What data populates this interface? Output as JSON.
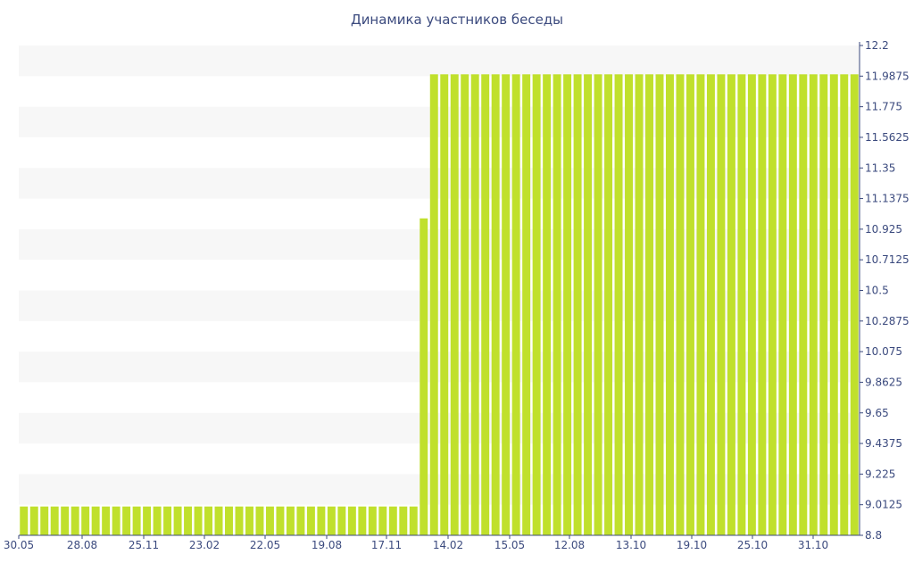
{
  "chart_data": {
    "type": "bar",
    "title": "Динамика участников беседы",
    "xlabel": "",
    "ylabel": "",
    "ylim": [
      8.8,
      12.2
    ],
    "y_axis_position": "right",
    "y_ticks": [
      "12.2",
      "11.9875",
      "11.775",
      "11.5625",
      "11.35",
      "11.1375",
      "10.925",
      "10.7125",
      "10.5",
      "10.2875",
      "10.075",
      "9.8625",
      "9.65",
      "9.4375",
      "9.225",
      "9.0125",
      "8.8"
    ],
    "x_tick_labels": [
      "30.05",
      "28.08",
      "25.11",
      "23.02",
      "22.05",
      "19.08",
      "17.11",
      "14.02",
      "15.05",
      "12.08",
      "13.10",
      "19.10",
      "25.10",
      "31.10"
    ],
    "bar_color": "#c0e02c",
    "grid": "alternating horizontal bands",
    "values": [
      9,
      9,
      9,
      9,
      9,
      9,
      9,
      9,
      9,
      9,
      9,
      9,
      9,
      9,
      9,
      9,
      9,
      9,
      9,
      9,
      9,
      9,
      9,
      9,
      9,
      9,
      9,
      9,
      9,
      9,
      9,
      9,
      9,
      9,
      9,
      9,
      9,
      9,
      9,
      11,
      12,
      12,
      12,
      12,
      12,
      12,
      12,
      12,
      12,
      12,
      12,
      12,
      12,
      12,
      12,
      12,
      12,
      12,
      12,
      12,
      12,
      12,
      12,
      12,
      12,
      12,
      12,
      12,
      12,
      12,
      12,
      12,
      12,
      12,
      12,
      12,
      12,
      12,
      12,
      12,
      12,
      12
    ]
  }
}
